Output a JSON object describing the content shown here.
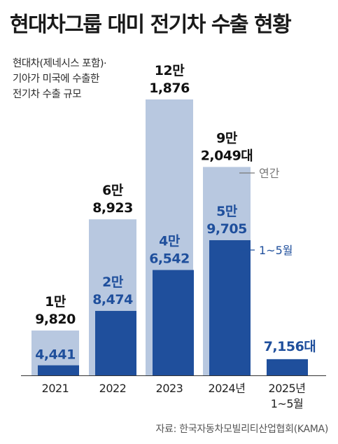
{
  "title": "현대차그룹 대미 전기차 수출 현황",
  "subtitle_lines": [
    "현대차(제네시스 포함)·",
    "기아가 미국에 수출한",
    "전기차 수출 규모"
  ],
  "source": "자료: 한국자동차모빌리티산업협회(KAMA)",
  "colors": {
    "annual": "#b8c8e0",
    "jan_may": "#1f4f9c",
    "text_dark": "#111111",
    "text_blue": "#1f4f9c",
    "legend_gray": "#777777"
  },
  "chart_data": {
    "type": "bar",
    "categories": [
      "2021",
      "2022",
      "2023",
      "2024년",
      "2025년\n1~5월"
    ],
    "series": [
      {
        "name": "연간",
        "values": [
          19820,
          68923,
          121876,
          92049,
          null
        ],
        "labels": [
          "1만\n9,820",
          "6만\n8,923",
          "12만\n1,876",
          "9만\n2,049대",
          null
        ]
      },
      {
        "name": "1~5월",
        "values": [
          4441,
          28474,
          46542,
          59705,
          7156
        ],
        "labels": [
          "4,441",
          "2만\n8,474",
          "4만\n6,542",
          "5만\n9,705",
          "7,156대"
        ]
      }
    ],
    "ylim": [
      0,
      121876
    ],
    "grid": false,
    "legend": "labels beside 2024 bar"
  }
}
